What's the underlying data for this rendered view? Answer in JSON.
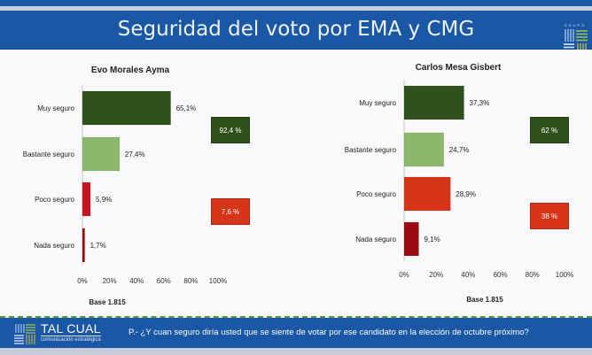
{
  "header": {
    "title": "Seguridad del voto por EMA y CMG",
    "logo_label": "GRUPO"
  },
  "colors": {
    "header_blue": "#1a57a4",
    "muy_seguro": "#2f521c",
    "bastante_seguro": "#8db86c",
    "poco_seguro": "#d63518",
    "poco_seguro_ema": "#c8141e",
    "nada_seguro": "#9a0c12",
    "summary_green": "#2f521c",
    "summary_red": "#d63518"
  },
  "chart_data": [
    {
      "type": "bar",
      "orientation": "horizontal",
      "title": "Evo Morales Ayma",
      "categories": [
        "Muy seguro",
        "Bastante seguro",
        "Poco seguro",
        "Nada seguro"
      ],
      "values": [
        65.1,
        27.4,
        5.9,
        1.7
      ],
      "value_labels": [
        "65,1%",
        "27,4%",
        "5,9%",
        "1,7%"
      ],
      "xlim": [
        0,
        100
      ],
      "xticks": [
        "0%",
        "20%",
        "40%",
        "60%",
        "80%",
        "100%"
      ],
      "grid": false,
      "footnote": "Base 1.815",
      "summary": [
        {
          "label": "92,4 %",
          "value": 92.4,
          "kind": "positive"
        },
        {
          "label": "7,6 %",
          "value": 7.6,
          "kind": "negative"
        }
      ]
    },
    {
      "type": "bar",
      "orientation": "horizontal",
      "title": "Carlos Mesa Gisbert",
      "categories": [
        "Muy seguro",
        "Bastante seguro",
        "Poco seguro",
        "Nada seguro"
      ],
      "values": [
        37.3,
        24.7,
        28.9,
        9.1
      ],
      "value_labels": [
        "37,3%",
        "24,7%",
        "28,9%",
        "9,1%"
      ],
      "xlim": [
        0,
        100
      ],
      "xticks": [
        "0%",
        "20%",
        "40%",
        "60%",
        "80%",
        "100%"
      ],
      "grid": false,
      "footnote": "Base 1.815",
      "summary": [
        {
          "label": "62 %",
          "value": 62,
          "kind": "positive"
        },
        {
          "label": "38 %",
          "value": 38,
          "kind": "negative"
        }
      ]
    }
  ],
  "footer": {
    "brand_name": "TAL CUAL",
    "brand_sub": "comunicación estratégica",
    "question": "P.- ¿Y cuan seguro diría usted que se siente de votar por ese candidato en la elección de octubre próximo?"
  }
}
